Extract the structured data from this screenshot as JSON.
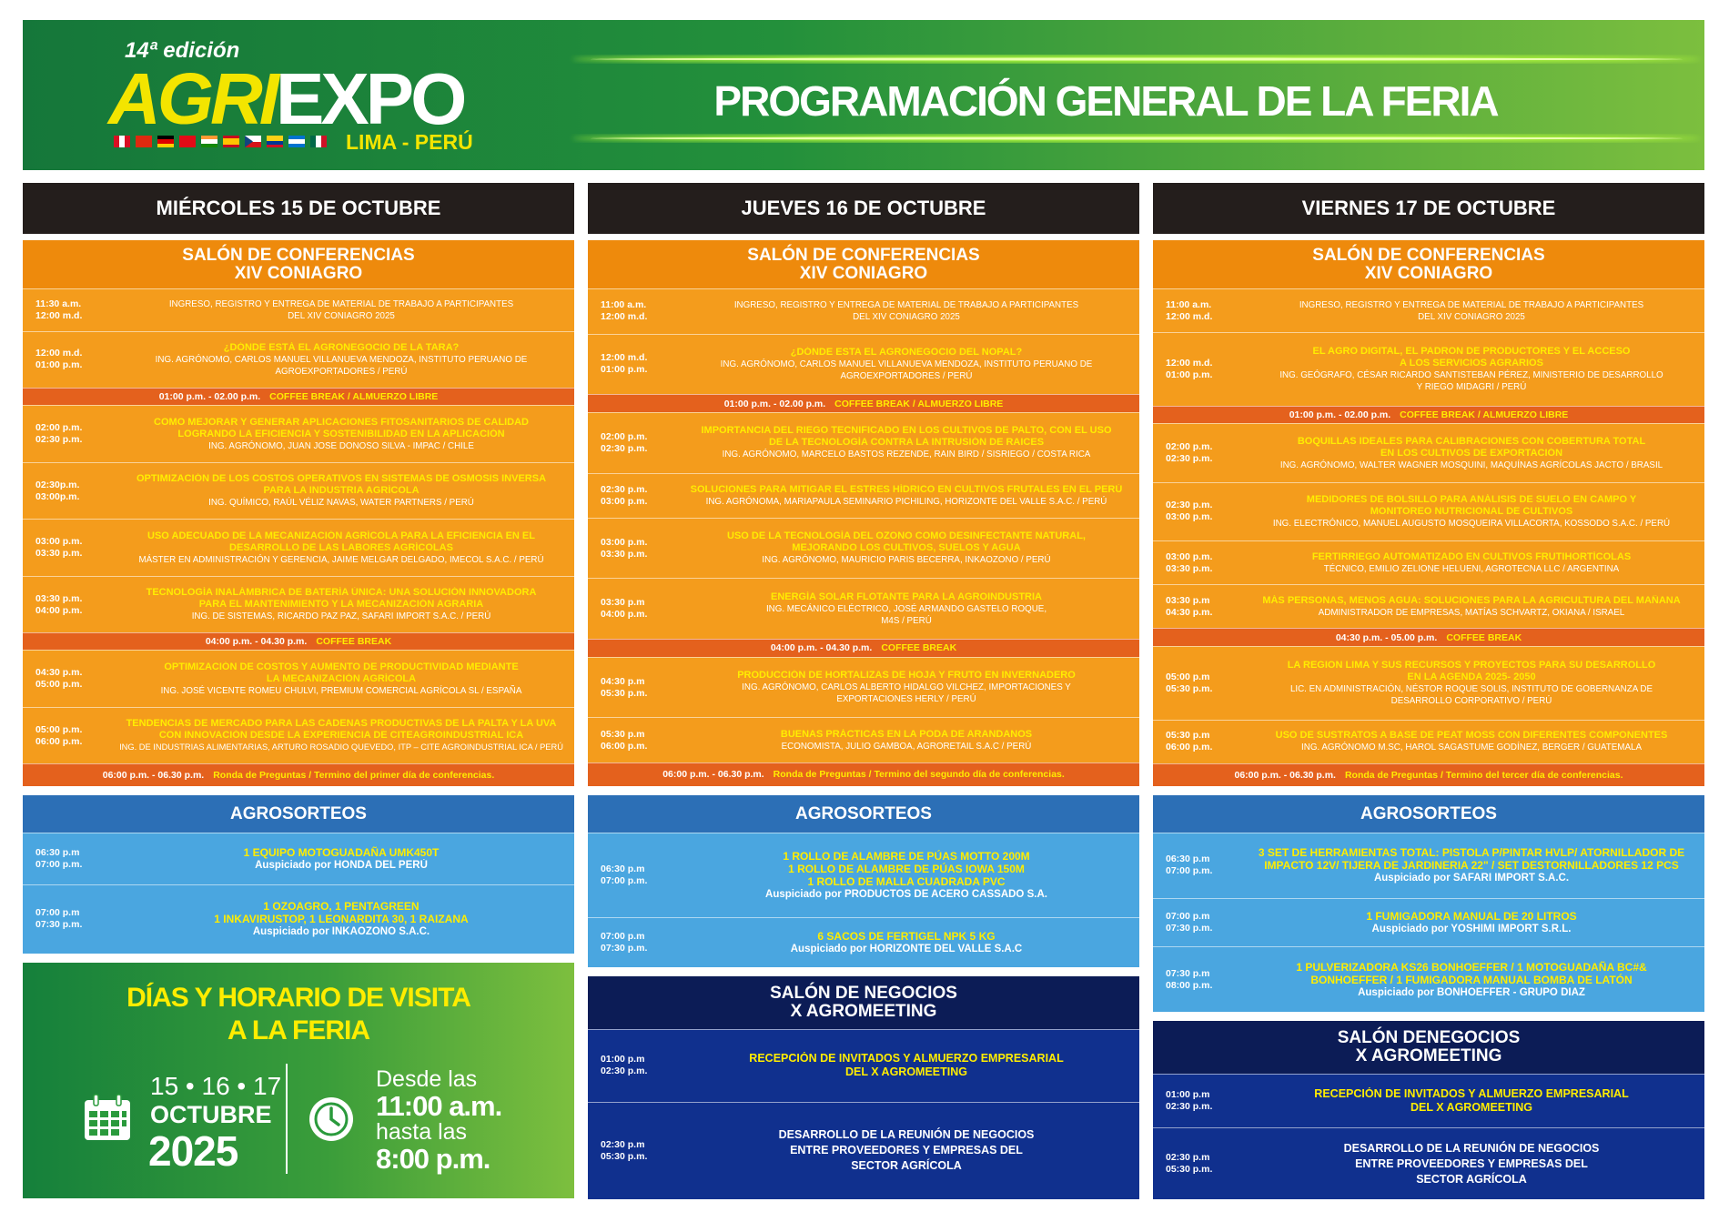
{
  "header": {
    "edition": "14ª edición",
    "logo_agri": "AGRI",
    "logo_expo": "EXPO",
    "location": "LIMA - PERÚ",
    "title": "PROGRAMACIÓN GENERAL DE LA FERIA"
  },
  "days": [
    {
      "date": "MIÉRCOLES 15 DE OCTUBRE",
      "conference": {
        "title": [
          "SALÓN DE CONFERENCIAS",
          "XIV CONIAGRO"
        ],
        "rows": [
          {
            "time": [
              "11:30 a.m.",
              "12:00 m.d."
            ],
            "speaker": [
              "INGRESO, REGISTRO Y ENTREGA DE MATERIAL DE TRABAJO A PARTICIPANTES",
              "DEL XIV CONIAGRO 2025"
            ]
          },
          {
            "time": [
              "12:00 m.d.",
              "01:00 p.m."
            ],
            "title": [
              "¿DÓNDE ESTÁ EL AGRONEGOCIO DE LA TARA?"
            ],
            "speaker": [
              "ING. AGRÓNOMO, CARLOS MANUEL VILLANUEVA MENDOZA, INSTITUTO PERUANO DE",
              "AGROEXPORTADORES / PERÚ"
            ]
          },
          {
            "time": "01:00 p.m. - 02.00 p.m.",
            "label": "COFFEE BREAK / ALMUERZO LIBRE"
          },
          {
            "time": [
              "02:00 p.m.",
              "02:30 p.m."
            ],
            "title": [
              "COMO MEJORAR Y GENERAR APLICACIONES FITOSANITARIOS DE CALIDAD",
              "LOGRANDO LA EFICIENCIA Y SOSTENIBILIDAD EN LA APLICACIÓN"
            ],
            "speaker": [
              "ING. AGRÓNOMO, JUAN JOSE DONOSO SILVA - IMPAC / CHILE"
            ]
          },
          {
            "time": [
              "02:30p.m.",
              "03:00p.m."
            ],
            "title": [
              "OPTIMIZACIÓN DE LOS COSTOS OPERATIVOS EN SISTEMAS DE OSMOSIS INVERSA",
              "PARA LA INDUSTRIA AGRÍCOLA"
            ],
            "speaker": [
              "ING. QUÍMICO, RAÚL VÉLIZ NAVAS, WATER PARTNERS / PERÚ"
            ]
          },
          {
            "time": [
              "03:00 p.m.",
              "03:30 p.m."
            ],
            "title": [
              "USO ADECUADO DE LA MECANIZACIÓN AGRÍCOLA PARA LA EFICIENCIA EN EL",
              "DESARROLLO DE LAS LABORES AGRÍCOLAS"
            ],
            "speaker": [
              "MÁSTER EN ADMINISTRACIÓN Y GERENCIA, JAIME MELGAR DELGADO, IMECOL S.A.C. / PERÚ"
            ]
          },
          {
            "time": [
              "03:30 p.m.",
              "04:00 p.m."
            ],
            "title": [
              "TECNOLOGÍA INALÁMBRICA DE BATERÍA ÚNICA: UNA SOLUCIÓN INNOVADORA",
              "PARA EL MANTENIMIENTO Y LA MECANIZACIÓN AGRARIA"
            ],
            "speaker": [
              "ING. DE SISTEMAS, RICARDO PAZ PAZ, SAFARI IMPORT S.A.C. / PERÚ"
            ]
          },
          {
            "time": "04:00 p.m. - 04.30 p.m.",
            "label": "COFFEE BREAK"
          },
          {
            "time": [
              "04:30 p.m.",
              "05:00 p.m."
            ],
            "title": [
              "OPTIMIZACIÓN DE COSTOS Y AUMENTO DE PRODUCTIVIDAD MEDIANTE",
              "LA MECANIZACIÓN AGRÍCOLA"
            ],
            "speaker": [
              "ING. JOSÉ VICENTE ROMEU CHULVI, PREMIUM COMERCIAL AGRÍCOLA SL / ESPAÑA"
            ]
          },
          {
            "time": [
              "05:00 p.m.",
              "06:00 p.m."
            ],
            "title": [
              "TENDENCIAS DE MERCADO PARA LAS CADENAS PRODUCTIVAS DE LA PALTA Y LA UVA",
              "CON INNOVACIÓN DESDE LA EXPERIENCIA DE CITEAGROINDUSTRIAL ICA"
            ],
            "speaker": [
              "ING. DE INDUSTRIAS ALIMENTARIAS, ARTURO ROSADIO QUEVEDO, ITP – CITE AGROINDUSTRIAL ICA / PERÚ"
            ]
          },
          {
            "time": "06:00 p.m. - 06.30 p.m.",
            "label": "Ronda de Preguntas / Termino del primer día de conferencias."
          }
        ]
      },
      "agrosorteos": {
        "title": "AGROSORTEOS",
        "rows": [
          {
            "time": [
              "06:30 p.m",
              "07:00 p.m."
            ],
            "title": [
              "1 EQUIPO MOTOGUADAÑA UMK450T"
            ],
            "speaker": [
              "Auspiciado por HONDA DEL PERÚ"
            ]
          },
          {
            "time": [
              "07:00 p.m",
              "07:30 p.m."
            ],
            "title": [
              "1 OZOAGRO, 1 PENTAGREEN",
              "1 INKAVIRUSTOP, 1 LEONARDITA 30, 1 RAIZANA"
            ],
            "speaker": [
              "Auspiciado por  INKAOZONO S.A.C."
            ]
          }
        ]
      }
    },
    {
      "date": "JUEVES 16 DE OCTUBRE",
      "conference": {
        "title": [
          "SALÓN DE CONFERENCIAS",
          "XIV CONIAGRO"
        ],
        "rows": [
          {
            "time": [
              "11:00 a.m.",
              "12:00 m.d."
            ],
            "speaker": [
              "INGRESO, REGISTRO Y ENTREGA DE MATERIAL DE TRABAJO A PARTICIPANTES",
              "DEL XIV CONIAGRO 2025"
            ]
          },
          {
            "time": [
              "12:00 m.d.",
              "01:00 p.m."
            ],
            "title": [
              "¿DÓNDE ESTA EL AGRONEGOCIO DEL NOPAL?"
            ],
            "speaker": [
              "ING. AGRÓNOMO, CARLOS MANUEL VILLANUEVA MENDOZA, INSTITUTO PERUANO DE",
              "AGROEXPORTADORES / PERÚ"
            ]
          },
          {
            "time": "01:00 p.m. - 02.00 p.m.",
            "label": "COFFEE BREAK / ALMUERZO LIBRE"
          },
          {
            "time": [
              "02:00 p.m.",
              "02:30 p.m."
            ],
            "title": [
              "IMPORTANCIA DEL RIEGO TECNIFICADO EN LOS CULTIVOS DE PALTO, CON EL USO",
              "DE LA TECNOLOGÍA CONTRA LA INTRUSIÓN DE RAICES"
            ],
            "speaker": [
              "ING. AGRÓNOMO, MARCELO BASTOS REZENDE, RAIN BIRD / SISRIEGO / COSTA RICA"
            ]
          },
          {
            "time": [
              "02:30 p.m.",
              "03:00 p.m."
            ],
            "title": [
              "SOLUCIONES PARA MITIGAR EL ESTRES HÍDRICO EN CULTIVOS FRUTALES EN EL PERÚ"
            ],
            "speaker": [
              "ING. AGRÓNOMA, MARIAPAULA SEMINARIO PICHILING, HORIZONTE DEL VALLE S.A.C. / PERÚ"
            ]
          },
          {
            "time": [
              "03:00 p.m.",
              "03:30 p.m."
            ],
            "title": [
              "USO DE LA TECNOLOGÍA DEL OZONO COMO DESINFECTANTE NATURAL,",
              "MEJORANDO LOS CULTIVOS, SUELOS Y AGUA"
            ],
            "speaker": [
              "ING. AGRÓNOMO, MAURICIO PARIS BECERRA, INKAOZONO / PERÚ"
            ]
          },
          {
            "time": [
              "03:30 p.m",
              "04:00 p.m."
            ],
            "title": [
              "ENERGÍA SOLAR FLOTANTE PARA LA AGROINDUSTRIA"
            ],
            "speaker": [
              "ING. MECÁNICO ELÉCTRICO, JOSÉ ARMANDO GASTELO ROQUE,",
              "M4S / PERÚ"
            ]
          },
          {
            "time": "04:00 p.m. - 04.30 p.m.",
            "label": "COFFEE BREAK"
          },
          {
            "time": [
              "04:30 p.m",
              "05:30 p.m."
            ],
            "title": [
              "PRODUCCIÓN DE HORTALIZAS DE HOJA Y FRUTO EN INVERNADERO"
            ],
            "speaker": [
              "ING. AGRÓNOMO, CARLOS ALBERTO HIDALGO VILCHEZ, IMPORTACIONES Y",
              "EXPORTACIONES HERLY / PERÚ"
            ]
          },
          {
            "time": [
              "05:30 p.m",
              "06:00 p.m."
            ],
            "title": [
              "BUENAS PRÁCTICAS EN LA PODA DE ARANDANOS"
            ],
            "speaker": [
              "ECONOMISTA, JULIO GAMBOA, AGRORETAIL S.A.C / PERÚ"
            ]
          },
          {
            "time": "06:00 p.m. - 06.30 p.m.",
            "label": "Ronda de Preguntas / Termino del segundo día de conferencias."
          }
        ]
      },
      "agrosorteos": {
        "title": "AGROSORTEOS",
        "rows": [
          {
            "time": [
              "06:30 p.m",
              "07:00 p.m."
            ],
            "title": [
              "1 ROLLO DE ALAMBRE DE PÚAS MOTTO 200M",
              "1 ROLLO DE ALAMBRE DE PÚAS IOWA 150M",
              "1 ROLLO DE MALLA CUADRADA PVC"
            ],
            "speaker": [
              "Auspiciado por PRODUCTOS DE ACERO CASSADO S.A."
            ]
          },
          {
            "time": [
              "07:00 p.m",
              "07:30 p.m."
            ],
            "title": [
              "6 SACOS DE FERTIGEL NPK 5 KG"
            ],
            "speaker": [
              "Auspiciado por HORIZONTE DEL VALLE S.A.C"
            ]
          }
        ]
      },
      "negocios": {
        "title": [
          "SALÓN DE NEGOCIOS",
          "X AGROMEETING"
        ],
        "rows": [
          {
            "time": [
              "01:00 p.m",
              "02:30 p.m."
            ],
            "title": [
              "RECEPCIÓN DE INVITADOS Y ALMUERZO EMPRESARIAL",
              "DEL X AGROMEETING"
            ]
          },
          {
            "time": [
              "02:30 p.m",
              "05:30 p.m."
            ],
            "speaker": [
              "DESARROLLO DE LA REUNIÓN DE NEGOCIOS",
              "ENTRE PROVEEDORES Y EMPRESAS DEL",
              "SECTOR AGRÍCOLA"
            ]
          }
        ]
      }
    },
    {
      "date": "VIERNES 17 DE OCTUBRE",
      "conference": {
        "title": [
          "SALÓN DE CONFERENCIAS",
          "XIV CONIAGRO"
        ],
        "rows": [
          {
            "time": [
              "11:00 a.m.",
              "12:00 m.d."
            ],
            "speaker": [
              "INGRESO, REGISTRO Y ENTREGA DE MATERIAL DE TRABAJO A PARTICIPANTES",
              "DEL XIV CONIAGRO 2025"
            ]
          },
          {
            "time": [
              "12:00 m.d.",
              "01:00 p.m."
            ],
            "title": [
              "EL AGRO DIGITAL, EL PADRON DE PRODUCTORES Y EL ACCESO",
              "A LOS SERVICIOS AGRARIOS"
            ],
            "speaker": [
              "ING. GEÓGRAFO, CÉSAR RICARDO SANTISTEBAN PÉREZ, MINISTERIO DE DESARROLLO",
              "Y RIEGO MIDAGRI / PERÚ"
            ]
          },
          {
            "time": "01:00 p.m. - 02.00 p.m.",
            "label": "COFFEE BREAK / ALMUERZO LIBRE"
          },
          {
            "time": [
              "02:00 p.m.",
              "02:30 p.m."
            ],
            "title": [
              "BOQUILLAS IDEALES PARA CALIBRACIONES CON COBERTURA TOTAL",
              "EN LOS CULTIVOS DE EXPORTACIÓN"
            ],
            "speaker": [
              "ING. AGRÓNOMO, WALTER WAGNER MOSQUINI, MAQUÍNAS AGRÍCOLAS JACTO / BRASIL"
            ]
          },
          {
            "time": [
              "02:30 p.m.",
              "03:00 p.m."
            ],
            "title": [
              "MEDIDORES DE BOLSILLO PARA ANÁLISIS DE SUELO EN CAMPO Y",
              "MONITOREO NUTRICIONAL DE CULTIVOS"
            ],
            "speaker": [
              "ING. ELECTRÓNICO, MANUEL AUGUSTO MOSQUEIRA VILLACORTA, KOSSODO S.A.C. / PERÚ"
            ]
          },
          {
            "time": [
              "03:00 p.m.",
              "03:30 p.m."
            ],
            "title": [
              "FERTIRRIEGO AUTOMATIZADO EN CULTIVOS FRUTIHORTÍCOLAS"
            ],
            "speaker": [
              "TÉCNICO, EMILIO ZELIONE HELUENI, AGROTECNA LLC / ARGENTINA"
            ]
          },
          {
            "time": [
              "03:30 p.m",
              "04:30 p.m."
            ],
            "title": [
              "MÁS PERSONAS, MENOS AGUA: SOLUCIONES PARA LA AGRICULTURA DEL MAÑANA"
            ],
            "speaker": [
              "ADMINISTRADOR DE EMPRESAS, MATÍAS SCHVARTZ, OKIANA / ISRAEL"
            ]
          },
          {
            "time": "04:30 p.m. - 05.00 p.m.",
            "label": "COFFEE BREAK"
          },
          {
            "time": [
              "05:00 p.m",
              "05:30 p.m."
            ],
            "title": [
              "LA REGION LIMA Y SUS RECURSOS Y PROYECTOS PARA SU DESARROLLO",
              "EN LA AGENDA 2025- 2050"
            ],
            "speaker": [
              "LIC. EN ADMINISTRACIÓN, NÉSTOR ROQUE SOLIS, INSTITUTO DE GOBERNANZA DE",
              "DESARROLLO CORPORATIVO / PERÚ"
            ]
          },
          {
            "time": [
              "05:30 p.m",
              "06:00 p.m."
            ],
            "title": [
              "USO DE SUSTRATOS A BASE DE PEAT MOSS CON DIFERENTES COMPONENTES"
            ],
            "speaker": [
              "ING. AGRÓNOMO M.SC, HAROL SAGASTUME GODÍNEZ, BERGER / GUATEMALA"
            ]
          },
          {
            "time": "06:00 p.m. - 06.30 p.m.",
            "label": "Ronda de Preguntas / Termino del tercer día de conferencias."
          }
        ]
      },
      "agrosorteos": {
        "title": "AGROSORTEOS",
        "rows": [
          {
            "time": [
              "06:30 p.m",
              "07:00 p.m."
            ],
            "title": [
              "3 SET DE HERRAMIENTAS TOTAL: PISTOLA P/PINTAR HVLP/ ATORNILLADOR DE",
              "IMPACTO 12V/ TIJERA DE JARDINERIA 22\" / SET DESTORNILLADORES 12 PCS"
            ],
            "speaker": [
              "Auspiciado por SAFARI IMPORT S.A.C."
            ]
          },
          {
            "time": [
              "07:00 p.m",
              "07:30 p.m."
            ],
            "title": [
              "1 FUMIGADORA MANUAL DE 20 LITROS"
            ],
            "speaker": [
              "Auspiciado por YOSHIMI IMPORT S.R.L."
            ]
          },
          {
            "time": [
              "07:30 p.m",
              "08:00 p.m."
            ],
            "title": [
              "1 PULVERIZADORA KS26 BONHOEFFER / 1 MOTOGUADAÑA BC#&",
              "BONHOEFFER / 1 FUMIGADORA MANUAL BOMBA DE LATÓN"
            ],
            "speaker": [
              "Auspiciado por BONHOEFFER - GRUPO DIAZ"
            ]
          }
        ]
      },
      "negocios": {
        "title": [
          "SALÓN DENEGOCIOS",
          "X AGROMEETING"
        ],
        "rows": [
          {
            "time": [
              "01:00 p.m",
              "02:30 p.m."
            ],
            "title": [
              "RECEPCIÓN DE INVITADOS Y ALMUERZO EMPRESARIAL",
              "DEL X AGROMEETING"
            ]
          },
          {
            "time": [
              "02:30 p.m",
              "05:30 p.m."
            ],
            "speaker": [
              "DESARROLLO DE LA REUNIÓN DE NEGOCIOS",
              "ENTRE PROVEEDORES Y EMPRESAS DEL",
              "SECTOR AGRÍCOLA"
            ]
          }
        ]
      }
    }
  ],
  "visit": {
    "title": [
      "DÍAS Y HORARIO DE VISITA",
      "A LA FERIA"
    ],
    "dates": "15 • 16 • 17",
    "month": "OCTUBRE",
    "year": "2025",
    "from": "Desde las",
    "from_time": "11:00 a.m.",
    "to": "hasta las",
    "to_time": "8:00 p.m."
  }
}
